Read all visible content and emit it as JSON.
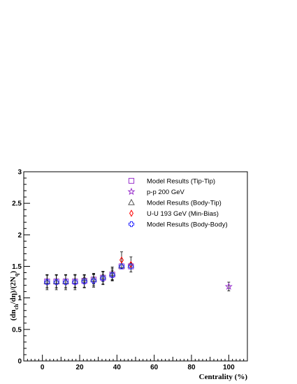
{
  "chart_data": {
    "type": "scatter",
    "xlabel": "Centrality (%)",
    "ylabel_main": "(dn",
    "ylabel_sub1": "ch",
    "ylabel_mid": "/dη)/(2N",
    "ylabel_sub2": "q",
    "ylabel_end": ")",
    "xlim": [
      -10,
      110
    ],
    "ylim": [
      0,
      3
    ],
    "x_ticks": [
      0,
      20,
      40,
      60,
      80,
      100
    ],
    "x_tick_labels": [
      "0",
      "20",
      "40",
      "60",
      "80",
      "100"
    ],
    "y_ticks": [
      0,
      0.5,
      1,
      1.5,
      2,
      2.5,
      3
    ],
    "y_tick_labels": [
      "0",
      "0.5",
      "1",
      "1.5",
      "2",
      "2.5",
      "3"
    ],
    "legend_position": "top-center",
    "series": [
      {
        "name": "Model Results (Tip-Tip)",
        "marker": "open-square",
        "color": "#9933cc",
        "points": [
          {
            "x": 2.5,
            "y": 1.26,
            "err": 0.1
          },
          {
            "x": 7.5,
            "y": 1.26,
            "err": 0.1
          },
          {
            "x": 12.5,
            "y": 1.26,
            "err": 0.1
          },
          {
            "x": 17.5,
            "y": 1.26,
            "err": 0.1
          },
          {
            "x": 22.5,
            "y": 1.27,
            "err": 0.1
          },
          {
            "x": 27.5,
            "y": 1.29,
            "err": 0.1
          },
          {
            "x": 32.5,
            "y": 1.32,
            "err": 0.1
          },
          {
            "x": 37.5,
            "y": 1.37,
            "err": 0.1
          },
          {
            "x": 42.5,
            "y": 1.5,
            "err": 0.0
          },
          {
            "x": 47.5,
            "y": 1.5,
            "err": 0.0
          }
        ]
      },
      {
        "name": "p-p 200 GeV",
        "marker": "open-star",
        "color": "#9933cc",
        "points": [
          {
            "x": 100,
            "y": 1.18,
            "err": 0.07
          }
        ]
      },
      {
        "name": "Model Results (Body-Tip)",
        "marker": "open-triangle",
        "color": "#555555",
        "points": [
          {
            "x": 2.5,
            "y": 1.26,
            "err": 0.1
          },
          {
            "x": 7.5,
            "y": 1.26,
            "err": 0.1
          },
          {
            "x": 12.5,
            "y": 1.26,
            "err": 0.1
          },
          {
            "x": 17.5,
            "y": 1.27,
            "err": 0.1
          },
          {
            "x": 22.5,
            "y": 1.3,
            "err": 0.06
          },
          {
            "x": 27.5,
            "y": 1.3,
            "err": 0.08
          },
          {
            "x": 32.5,
            "y": 1.34,
            "err": 0.08
          },
          {
            "x": 37.5,
            "y": 1.39,
            "err": 0.1
          },
          {
            "x": 42.5,
            "y": 1.51,
            "err": 0.0
          },
          {
            "x": 47.5,
            "y": 1.52,
            "err": 0.0
          }
        ]
      },
      {
        "name": "U-U 193 GeV (Min-Bias)",
        "marker": "open-diamond",
        "color": "#ff0000",
        "points": [
          {
            "x": 42.5,
            "y": 1.6,
            "err": 0.13
          },
          {
            "x": 47.5,
            "y": 1.53,
            "err": 0.12
          }
        ]
      },
      {
        "name": "Model Results (Body-Body)",
        "marker": "open-cross",
        "color": "#3333ff",
        "points": [
          {
            "x": 2.5,
            "y": 1.25,
            "err": 0.12
          },
          {
            "x": 7.5,
            "y": 1.25,
            "err": 0.12
          },
          {
            "x": 12.5,
            "y": 1.25,
            "err": 0.12
          },
          {
            "x": 17.5,
            "y": 1.25,
            "err": 0.12
          },
          {
            "x": 22.5,
            "y": 1.26,
            "err": 0.1
          },
          {
            "x": 27.5,
            "y": 1.27,
            "err": 0.1
          },
          {
            "x": 32.5,
            "y": 1.31,
            "err": 0.1
          },
          {
            "x": 37.5,
            "y": 1.36,
            "err": 0.08
          },
          {
            "x": 42.5,
            "y": 1.5,
            "err": 0.0
          },
          {
            "x": 47.5,
            "y": 1.5,
            "err": 0.0
          }
        ]
      }
    ]
  }
}
